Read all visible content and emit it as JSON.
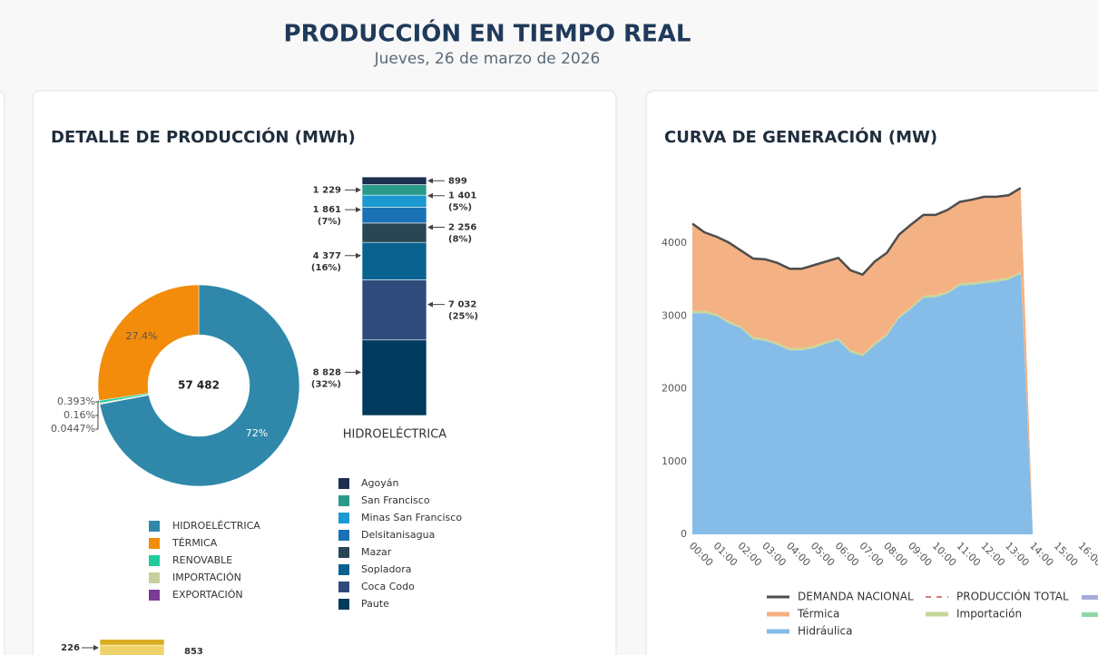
{
  "header": {
    "title": "PRODUCCIÓN EN TIEMPO REAL",
    "subtitle": "Jueves, 26 de marzo de 2026"
  },
  "chart_data": [
    {
      "type": "donut",
      "title": "DETALLE DE PRODUCCIÓN (MWh)",
      "total": 57482,
      "total_label": "57 482",
      "categories": [
        "HIDROELÉCTRICA",
        "TÉRMICA",
        "RENOVABLE",
        "IMPORTACIÓN",
        "EXPORTACIÓN"
      ],
      "values": [
        72,
        27.4,
        0.393,
        0.16,
        0.0447
      ],
      "value_labels": [
        "72%",
        "27.4%",
        "0.393%",
        "0.16%",
        "0.0447%"
      ],
      "colors": [
        "#2f88aa",
        "#f28c0a",
        "#1fcb9c",
        "#c8cf9c",
        "#7b3a96"
      ]
    },
    {
      "type": "stacked_column",
      "category": "HIDROELÉCTRICA",
      "series": [
        {
          "name": "Agoyán",
          "color": "#1c2f50",
          "values": [
            899
          ]
        },
        {
          "name": "San Francisco",
          "color": "#2a9a8a",
          "values": [
            1229
          ],
          "value_labels": [
            "1 229"
          ]
        },
        {
          "name": "Minas San Francisco",
          "color": "#1a9ad0",
          "values": [
            1401
          ],
          "value_labels": [
            "1 401"
          ],
          "share_labels": [
            "(5%)"
          ]
        },
        {
          "name": "Delsitanisagua",
          "color": "#1a72b4",
          "values": [
            1861
          ],
          "value_labels": [
            "1 861"
          ],
          "share_labels": [
            "(7%)"
          ]
        },
        {
          "name": "Mazar",
          "color": "#2a4654",
          "values": [
            2256
          ],
          "value_labels": [
            "2 256"
          ],
          "share_labels": [
            "(8%)"
          ]
        },
        {
          "name": "Sopladora",
          "color": "#09628f",
          "values": [
            4377
          ],
          "value_labels": [
            "4 377"
          ],
          "share_labels": [
            "(16%)"
          ]
        },
        {
          "name": "Coca Codo",
          "color": "#2f4b7c",
          "values": [
            7032
          ],
          "value_labels": [
            "7 032"
          ],
          "share_labels": [
            "(25%)"
          ]
        },
        {
          "name": "Paute",
          "color": "#003a5c",
          "values": [
            8828
          ],
          "value_labels": [
            "8 828"
          ],
          "share_labels": [
            "(32%)"
          ]
        }
      ]
    },
    {
      "type": "stacked_column",
      "series": [
        {
          "color": "#d9ab1f",
          "values": [
            226
          ]
        },
        {
          "color": "#f0d26a",
          "values": [
            853
          ]
        }
      ]
    },
    {
      "type": "area",
      "title": "CURVA DE GENERACIÓN (MW)",
      "x": [
        "00:00",
        "00:30",
        "01:00",
        "01:30",
        "02:00",
        "02:30",
        "03:00",
        "03:30",
        "04:00",
        "04:30",
        "05:00",
        "05:30",
        "06:00",
        "06:30",
        "07:00",
        "07:30",
        "08:00",
        "08:30",
        "09:00",
        "09:30",
        "10:00",
        "10:30",
        "11:00",
        "11:30",
        "12:00",
        "12:30",
        "13:00",
        "13:30",
        "14:00"
      ],
      "xticks": [
        "00:00",
        "01:00",
        "02:00",
        "03:00",
        "04:00",
        "05:00",
        "06:00",
        "07:00",
        "08:00",
        "09:00",
        "10:00",
        "11:00",
        "12:00",
        "13:00",
        "14:00",
        "15:00",
        "16:00"
      ],
      "ylim": [
        0,
        4975
      ],
      "yticks": [
        0,
        1000,
        2000,
        3000,
        4000
      ],
      "grid": false,
      "series": [
        {
          "name": "DEMANDA NACIONAL",
          "type": "line",
          "color": "#4d4d4d",
          "values": [
            4270,
            4150,
            4090,
            4010,
            3900,
            3790,
            3780,
            3730,
            3650,
            3650,
            3700,
            3750,
            3800,
            3630,
            3570,
            3750,
            3870,
            4120,
            4260,
            4390,
            4390,
            4460,
            4570,
            4600,
            4640,
            4640,
            4660,
            4760,
            null
          ]
        },
        {
          "name": "Térmica",
          "type": "area",
          "color": "#f4b183",
          "values": [
            1200,
            1080,
            1060,
            1080,
            1040,
            1080,
            1090,
            1100,
            1090,
            1090,
            1110,
            1100,
            1100,
            1100,
            1090,
            1120,
            1110,
            1120,
            1130,
            1110,
            1100,
            1120,
            1120,
            1140,
            1160,
            1140,
            1130,
            1150,
            0
          ]
        },
        {
          "name": "Importación",
          "type": "area",
          "color": "#c6d79a",
          "values": [
            30,
            30,
            30,
            30,
            30,
            30,
            30,
            30,
            30,
            30,
            30,
            30,
            30,
            30,
            30,
            30,
            30,
            30,
            30,
            30,
            30,
            30,
            30,
            30,
            30,
            30,
            30,
            30,
            0
          ]
        },
        {
          "name": "Hidráulica",
          "type": "area",
          "color": "#85bce8",
          "values": [
            3040,
            3040,
            3000,
            2900,
            2830,
            2680,
            2660,
            2600,
            2530,
            2530,
            2560,
            2620,
            2670,
            2500,
            2450,
            2600,
            2730,
            2970,
            3100,
            3250,
            3260,
            3310,
            3420,
            3430,
            3450,
            3470,
            3500,
            3580,
            0
          ]
        }
      ],
      "legend_extra": [
        {
          "name": "PRODUCCIÓN TOTAL",
          "color": "#c0504d",
          "dash": true
        }
      ]
    }
  ]
}
